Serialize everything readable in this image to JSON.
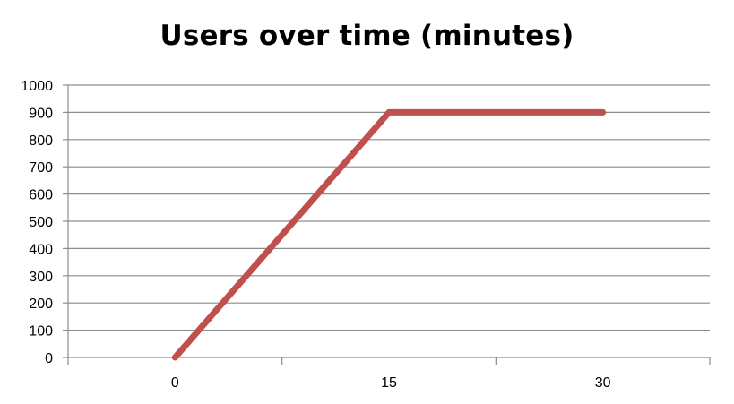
{
  "chart_data": {
    "type": "line",
    "title": "Users over time (minutes)",
    "xlabel": "",
    "ylabel": "",
    "x_tick_labels": [
      "0",
      "15",
      "30"
    ],
    "y_tick_labels": [
      "0",
      "100",
      "200",
      "300",
      "400",
      "500",
      "600",
      "700",
      "800",
      "900",
      "1000"
    ],
    "xlim": [
      -7.5,
      37.5
    ],
    "ylim": [
      0,
      1000
    ],
    "grid": true,
    "legend": "none",
    "series": [
      {
        "x": [
          0,
          15,
          30
        ],
        "values": [
          0,
          900,
          900
        ],
        "color": "#c0504d"
      }
    ]
  }
}
